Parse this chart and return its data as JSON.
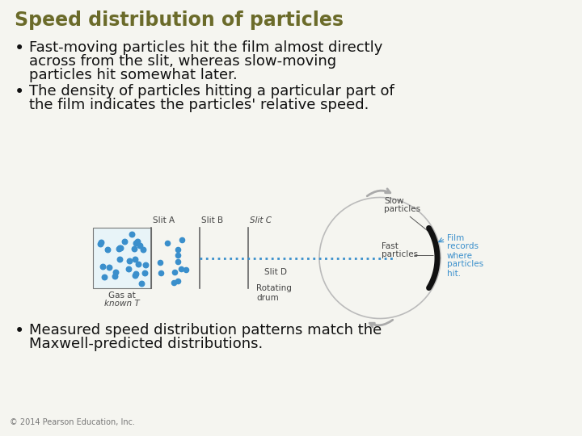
{
  "title": "Speed distribution of particles",
  "title_color": "#6b6b2a",
  "title_fontsize": 17,
  "background_color": "#f5f5f0",
  "bullet1_line1": "Fast-moving particles hit the film almost directly",
  "bullet1_line2": "across from the slit, whereas slow-moving",
  "bullet1_line3": "particles hit somewhat later.",
  "bullet2_line1": "The density of particles hitting a particular part of",
  "bullet2_line2": "the film indicates the particles' relative speed.",
  "bullet3_line1": "Measured speed distribution patterns match the",
  "bullet3_line2": "Maxwell-predicted distributions.",
  "bullet_color": "#111111",
  "bullet_fontsize": 13,
  "footer": "© 2014 Pearson Education, Inc.",
  "footer_fontsize": 7,
  "dot_color": "#3a8fcc",
  "arrow_color": "#999999",
  "film_label_color": "#3a8fcc",
  "label_color": "#444444",
  "diagram_label_fontsize": 7.5
}
